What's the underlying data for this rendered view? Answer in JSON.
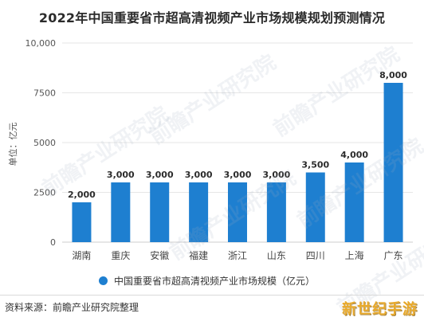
{
  "chart_data": {
    "type": "bar",
    "title": "2022年中国重要省市超高清视频产业市场规模规划预测情况",
    "ylabel": "单位：亿元",
    "xlabel": "",
    "categories": [
      "湖南",
      "重庆",
      "安徽",
      "福建",
      "浙江",
      "山东",
      "四川",
      "上海",
      "广东"
    ],
    "series": [
      {
        "name": "中国重要省市超高清视频产业市场规模（亿元）",
        "values": [
          2000,
          3000,
          3000,
          3000,
          3000,
          3000,
          3500,
          4000,
          8000
        ],
        "data_labels": [
          "2,000",
          "3,000",
          "3,000",
          "3,000",
          "3,000",
          "3,000",
          "3,500",
          "4,000",
          "8,000"
        ],
        "color": "#1e7fd0"
      }
    ],
    "ylim": [
      0,
      10000
    ],
    "yticks": [
      0,
      2500,
      5000,
      7500,
      10000
    ],
    "ytick_labels": [
      "0",
      "2500",
      "5000",
      "7500",
      "10,000"
    ],
    "grid": true,
    "legend_position": "bottom"
  },
  "source": "资料来源：前瞻产业研究院整理",
  "watermark_text": "前瞻产业研究院",
  "corner_tag": "新世纪手游",
  "colors": {
    "bar": "#1e7fd0",
    "grid": "#e6e6e6",
    "axis_text": "#555555"
  }
}
